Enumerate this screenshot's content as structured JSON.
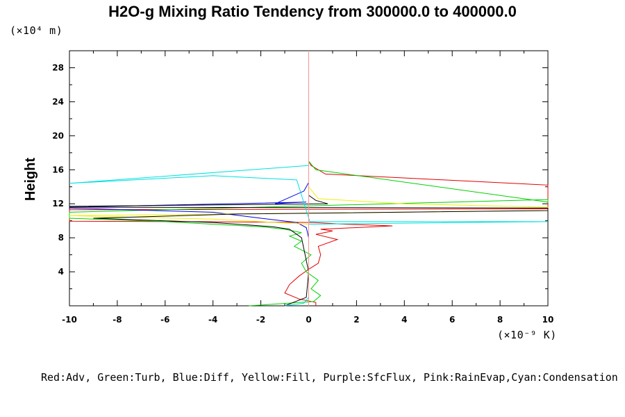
{
  "chart_data": {
    "type": "line",
    "title": "H2O-g Mixing Ratio Tendency from 300000.0 to 400000.0",
    "ylabel": "Height",
    "y_unit": "(×10⁴ m)",
    "x_unit": "(×10⁻⁹ K)",
    "legend_text": "Red:Adv, Green:Turb, Blue:Diff, Yellow:Fill, Purple:SfcFlux, Pink:RainEvap,Cyan:Condensation",
    "xlim": [
      -10,
      10
    ],
    "ylim": [
      0,
      30
    ],
    "x_ticks": [
      -10,
      -8,
      -6,
      -4,
      -2,
      0,
      2,
      4,
      6,
      8,
      10
    ],
    "x_tick_labels": [
      "-10",
      "-8",
      "-6",
      "-4",
      "-2",
      "0",
      "2",
      "4",
      "6",
      "8",
      "10"
    ],
    "y_ticks": [
      4,
      8,
      12,
      16,
      20,
      24,
      28
    ],
    "y_tick_labels": [
      "4",
      "8",
      "12",
      "16",
      "20",
      "24",
      "28"
    ],
    "grid": false,
    "series": [
      {
        "name": "Red:Adv",
        "color": "#e00000",
        "x": [
          0.3,
          0.3,
          -0.4,
          -1.0,
          -0.8,
          -0.4,
          0.0,
          0.4,
          0.5,
          0.4,
          1.2,
          0.3,
          1.0,
          0.5,
          3.5,
          1.5,
          0.2,
          -5,
          -10,
          -10,
          10,
          10,
          0.7,
          0.1,
          0.0
        ],
        "y": [
          0.0,
          0.4,
          0.8,
          1.5,
          2.5,
          3.5,
          4.3,
          5.0,
          6.0,
          7.0,
          7.8,
          8.4,
          8.8,
          9.0,
          9.4,
          9.6,
          9.8,
          9.9,
          9.95,
          11.3,
          11.4,
          14.2,
          15.5,
          16.5,
          17.0
        ]
      },
      {
        "name": "Green:Turb",
        "color": "#00d000",
        "x": [
          -2.5,
          0.2,
          0.5,
          0.1,
          0.4,
          -0.1,
          -0.3,
          0.1,
          -0.6,
          -0.3,
          -0.8,
          -0.3,
          -1.0,
          -2.0,
          -4.0,
          -6.0,
          -10,
          -10,
          10,
          10,
          0.3,
          0.0
        ],
        "y": [
          0.0,
          0.5,
          1.2,
          2.0,
          3.0,
          4.0,
          5.0,
          6.0,
          7.0,
          7.6,
          8.2,
          8.6,
          9.0,
          9.3,
          9.6,
          9.9,
          10.3,
          11.0,
          12.5,
          12.2,
          16.0,
          17.0
        ]
      },
      {
        "name": "Blue:Diff",
        "color": "#0000e0",
        "x": [
          0.0,
          0.0,
          0.0,
          -0.1,
          -0.5,
          -2.0,
          -4.0,
          -10,
          -10,
          -0.1,
          -0.9,
          -1.4,
          -0.2,
          0.0,
          0.0
        ],
        "y": [
          0.0,
          4.0,
          8.0,
          9.2,
          9.8,
          10.3,
          11.0,
          11.5,
          11.6,
          12.2,
          12.1,
          12.0,
          13.5,
          14.5,
          15.0
        ]
      },
      {
        "name": "Yellow:Fill",
        "color": "#f0f000",
        "x": [
          0.0,
          0.0,
          -4.0,
          -10,
          10,
          10,
          4.0,
          0.4,
          0.0
        ],
        "y": [
          0.0,
          9.6,
          10.2,
          10.6,
          11.2,
          11.6,
          12.0,
          12.6,
          14.0
        ]
      },
      {
        "name": "Black",
        "color": "#000000",
        "x": [
          -1.0,
          -0.1,
          0.0,
          -0.3,
          -0.8,
          -1.5,
          -2.5,
          -4.0,
          -6.0,
          -9.0,
          -3.0,
          10,
          10,
          -10,
          -10,
          0.8,
          0.3,
          0.0
        ],
        "y": [
          0.0,
          1.0,
          4.0,
          8.0,
          9.0,
          9.3,
          9.5,
          9.8,
          10.0,
          10.3,
          10.8,
          11.2,
          11.5,
          11.6,
          11.7,
          12.0,
          12.4,
          13.0
        ]
      },
      {
        "name": "Cyan:Condensation",
        "color": "#00e0e0",
        "x": [
          -1.0,
          -0.2,
          0.0,
          0.0,
          10,
          0.05,
          -0.5,
          -4.0,
          -10,
          0.0,
          0.0
        ],
        "y": [
          0.0,
          0.3,
          1.0,
          9.6,
          9.9,
          9.9,
          14.8,
          15.3,
          14.4,
          16.5,
          30.0
        ]
      },
      {
        "name": "Pink:RainEvap",
        "color": "#ff9090",
        "x": [
          0.0,
          0.0,
          0.0
        ],
        "y": [
          0.0,
          9.8,
          30.0
        ]
      }
    ]
  }
}
